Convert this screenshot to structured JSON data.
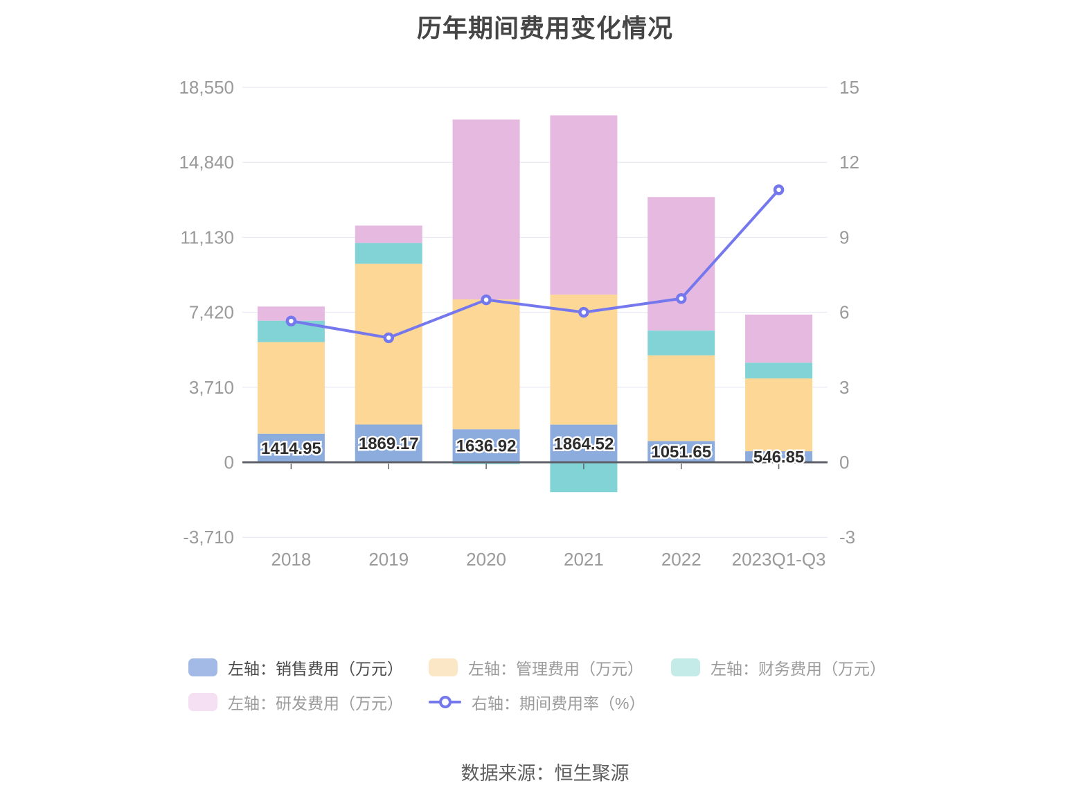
{
  "page": {
    "source": "数据来源：恒生聚源"
  },
  "chart_data": {
    "type": "bar",
    "stacked": true,
    "grid": true,
    "legend_position": "bottom",
    "title": "历年期间费用变化情况",
    "categories": [
      "2018",
      "2019",
      "2020",
      "2021",
      "2022",
      "2023Q1-Q3"
    ],
    "series": [
      {
        "name": "左轴：销售费用（万元）",
        "type": "bar",
        "stack": "total",
        "axis": "left",
        "color": "#8cacde",
        "swatch": "#a2bae5",
        "values": [
          1414.95,
          1869.17,
          1636.92,
          1864.52,
          1051.65,
          546.85
        ]
      },
      {
        "name": "左轴：管理费用（万元）",
        "type": "bar",
        "stack": "total",
        "axis": "left",
        "color": "#fdd795",
        "swatch": "#fbe7c5",
        "values": [
          4530,
          7950,
          6420,
          6430,
          4240,
          3600
        ]
      },
      {
        "name": "左轴：财务费用（万元）",
        "type": "bar",
        "stack": "total",
        "axis": "left",
        "color": "#82d3d6",
        "swatch": "#c4ebe8",
        "values": [
          1060,
          1030,
          -90,
          -1480,
          1230,
          780
        ]
      },
      {
        "name": "左轴：研发费用（万元）",
        "type": "bar",
        "stack": "total",
        "axis": "left",
        "color": "#e5b9e0",
        "swatch": "#f5dff2",
        "values": [
          700,
          860,
          8900,
          8870,
          6600,
          2380
        ]
      },
      {
        "name": "右轴：期间费用率（%）",
        "type": "line",
        "axis": "right",
        "color": "#7577ec",
        "values": [
          5.65,
          4.98,
          6.5,
          6.0,
          6.55,
          10.9
        ]
      }
    ],
    "bar_labels": [
      "1414.95",
      "1869.17",
      "1636.92",
      "1864.52",
      "1051.65",
      "546.85"
    ],
    "left_axis": {
      "min": -3710,
      "max": 18550,
      "interval": 3710,
      "ticks": [
        {
          "value": 18550,
          "label": "18,550"
        },
        {
          "value": 14840,
          "label": "14,840"
        },
        {
          "value": 11130,
          "label": "11,130"
        },
        {
          "value": 7420,
          "label": "7,420"
        },
        {
          "value": 3710,
          "label": "3,710"
        },
        {
          "value": 0,
          "label": "0"
        },
        {
          "value": -3710,
          "label": "-3,710"
        }
      ]
    },
    "right_axis": {
      "min": -3,
      "max": 15,
      "interval": 3,
      "ticks": [
        {
          "value": 15,
          "label": "15"
        },
        {
          "value": 12,
          "label": "12"
        },
        {
          "value": 9,
          "label": "9"
        },
        {
          "value": 6,
          "label": "6"
        },
        {
          "value": 3,
          "label": "3"
        },
        {
          "value": 0,
          "label": "0"
        },
        {
          "value": -3,
          "label": "-3"
        }
      ]
    }
  },
  "colors": {
    "grid_line": "#e2e5f2",
    "axis_line": "#5d6069",
    "axis_label": "#9a9a9a",
    "title": "#454545",
    "bar_label": "#2d2d2d",
    "source_text": "#5e5e5e"
  }
}
